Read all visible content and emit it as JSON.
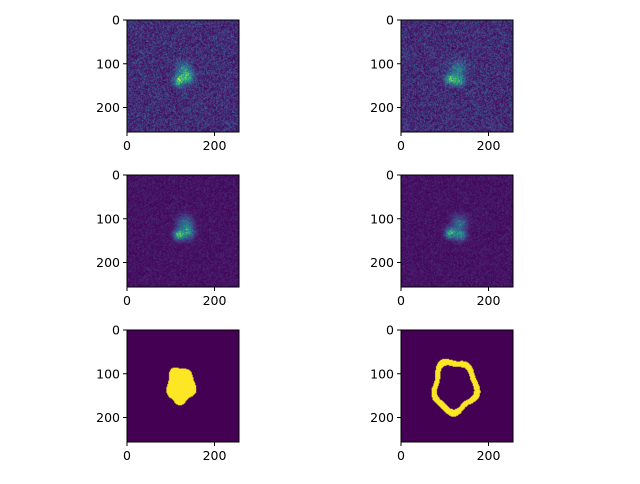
{
  "chart_data": [
    {
      "type": "heatmap",
      "panel": "top-left",
      "content": "noisy fluorescence frame",
      "colormap": "viridis",
      "xlim": [
        0,
        255
      ],
      "ylim": [
        255,
        0
      ],
      "xticks": [
        "0",
        "200"
      ],
      "yticks": [
        "0",
        "100",
        "200"
      ],
      "blobs": [
        {
          "x": 118,
          "y": 138,
          "intensity": 0.6,
          "spread": 8
        },
        {
          "x": 138,
          "y": 130,
          "intensity": 0.45,
          "spread": 10
        },
        {
          "x": 128,
          "y": 112,
          "intensity": 0.3,
          "spread": 12
        }
      ],
      "noise_level": 0.3
    },
    {
      "type": "heatmap",
      "panel": "top-right",
      "content": "noisy fluorescence frame",
      "colormap": "viridis",
      "xlim": [
        0,
        255
      ],
      "ylim": [
        255,
        0
      ],
      "xticks": [
        "0",
        "200"
      ],
      "yticks": [
        "0",
        "100",
        "200"
      ],
      "blobs": [
        {
          "x": 112,
          "y": 134,
          "intensity": 0.55,
          "spread": 8
        },
        {
          "x": 132,
          "y": 138,
          "intensity": 0.45,
          "spread": 9
        },
        {
          "x": 130,
          "y": 110,
          "intensity": 0.3,
          "spread": 12
        }
      ],
      "noise_level": 0.3
    },
    {
      "type": "heatmap",
      "panel": "middle-left",
      "content": "denoised frame",
      "colormap": "viridis",
      "xlim": [
        0,
        255
      ],
      "ylim": [
        255,
        0
      ],
      "xticks": [
        "0",
        "200"
      ],
      "yticks": [
        "0",
        "100",
        "200"
      ],
      "blobs": [
        {
          "x": 118,
          "y": 136,
          "intensity": 0.6,
          "spread": 8
        },
        {
          "x": 138,
          "y": 130,
          "intensity": 0.45,
          "spread": 10
        },
        {
          "x": 132,
          "y": 108,
          "intensity": 0.3,
          "spread": 12
        }
      ],
      "noise_level": 0.12
    },
    {
      "type": "heatmap",
      "panel": "middle-right",
      "content": "denoised frame",
      "colormap": "viridis",
      "xlim": [
        0,
        255
      ],
      "ylim": [
        255,
        0
      ],
      "xticks": [
        "0",
        "200"
      ],
      "yticks": [
        "0",
        "100",
        "200"
      ],
      "blobs": [
        {
          "x": 112,
          "y": 132,
          "intensity": 0.55,
          "spread": 8
        },
        {
          "x": 134,
          "y": 136,
          "intensity": 0.45,
          "spread": 9
        },
        {
          "x": 132,
          "y": 108,
          "intensity": 0.3,
          "spread": 12
        }
      ],
      "noise_level": 0.12
    },
    {
      "type": "heatmap",
      "panel": "bottom-left",
      "content": "binary mask (filled region)",
      "colormap": "viridis",
      "xlim": [
        0,
        255
      ],
      "ylim": [
        255,
        0
      ],
      "xticks": [
        "0",
        "200"
      ],
      "yticks": [
        "0",
        "100",
        "200"
      ],
      "mask": {
        "shape": "filled-blob",
        "cx": 122,
        "cy": 126,
        "rx": 33,
        "ry": 42
      }
    },
    {
      "type": "heatmap",
      "panel": "bottom-right",
      "content": "binary mask (ring outline)",
      "colormap": "viridis",
      "xlim": [
        0,
        255
      ],
      "ylim": [
        255,
        0
      ],
      "xticks": [
        "0",
        "200"
      ],
      "yticks": [
        "0",
        "100",
        "200"
      ],
      "mask": {
        "shape": "ring",
        "cx": 122,
        "cy": 128,
        "rx": 47,
        "ry": 56,
        "thickness": 14
      }
    }
  ],
  "colors": {
    "background": "#440154",
    "mask_on": "#fde725",
    "figure": "#ffffff",
    "axis": "#000000"
  }
}
